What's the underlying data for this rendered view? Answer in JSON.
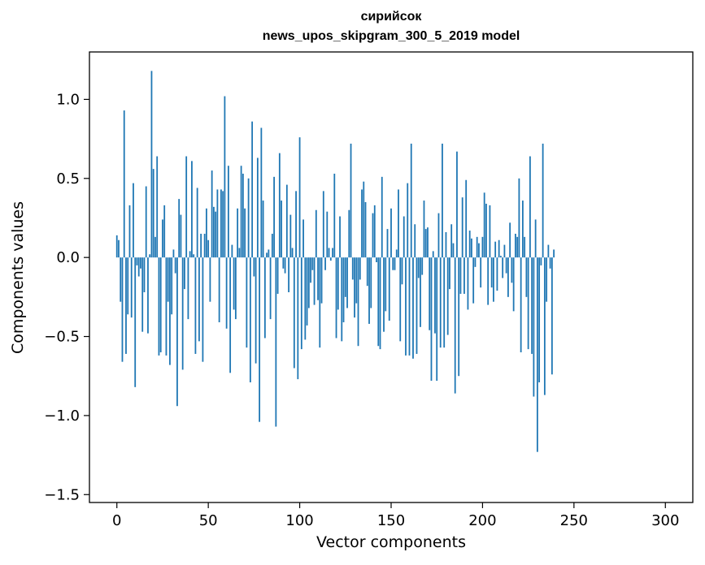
{
  "chart_data": {
    "type": "bar",
    "title": [
      "сирийсок",
      "news_upos_skipgram_300_5_2019 model"
    ],
    "xlabel": "Vector components",
    "ylabel": "Components values",
    "xlim": [
      -15,
      315
    ],
    "ylim": [
      -1.55,
      1.3
    ],
    "xticks": [
      0,
      50,
      100,
      150,
      200,
      250,
      300
    ],
    "yticks": [
      -1.5,
      -1.0,
      -0.5,
      0.0,
      0.5,
      1.0
    ],
    "ytick_labels": [
      "−1.5",
      "−1.0",
      "−0.5",
      "0.0",
      "0.5",
      "1.0"
    ],
    "grid": false,
    "color": "#1f77b4",
    "values": [
      0.14,
      0.11,
      -0.28,
      -0.66,
      0.93,
      -0.61,
      -0.36,
      0.33,
      -0.38,
      0.47,
      -0.82,
      -0.05,
      -0.12,
      -0.07,
      -0.47,
      -0.22,
      0.45,
      -0.48,
      0.02,
      1.18,
      0.56,
      0.13,
      0.64,
      -0.62,
      -0.6,
      0.24,
      0.33,
      -0.62,
      -0.28,
      -0.68,
      -0.36,
      0.05,
      -0.1,
      -0.94,
      0.37,
      0.27,
      -0.71,
      -0.2,
      0.64,
      -0.39,
      0.04,
      0.61,
      0.02,
      -0.61,
      0.44,
      -0.53,
      0.15,
      -0.66,
      0.15,
      0.31,
      0.11,
      -0.28,
      0.55,
      0.32,
      0.29,
      0.43,
      -0.41,
      0.43,
      0.42,
      1.02,
      -0.45,
      0.58,
      -0.73,
      0.08,
      -0.33,
      -0.39,
      0.31,
      0.06,
      0.58,
      0.53,
      0.31,
      -0.57,
      0.5,
      -0.79,
      0.86,
      -0.12,
      -0.67,
      0.63,
      -1.04,
      0.82,
      0.36,
      -0.51,
      0.03,
      0.05,
      -0.39,
      0.15,
      0.51,
      -1.07,
      -0.23,
      0.66,
      0.36,
      -0.07,
      -0.1,
      0.46,
      -0.22,
      0.27,
      0.06,
      -0.7,
      0.42,
      -0.77,
      0.76,
      -0.58,
      0.24,
      -0.52,
      -0.43,
      -0.32,
      -0.16,
      -0.08,
      -0.3,
      0.3,
      -0.27,
      -0.57,
      -0.29,
      0.42,
      -0.08,
      0.29,
      0.06,
      -0.02,
      0.06,
      0.53,
      -0.51,
      -0.33,
      0.26,
      -0.53,
      -0.41,
      -0.25,
      -0.32,
      0.3,
      0.72,
      -0.14,
      -0.38,
      -0.29,
      -0.56,
      -0.14,
      0.43,
      0.48,
      0.35,
      -0.18,
      -0.42,
      -0.32,
      0.28,
      0.33,
      -0.03,
      -0.56,
      -0.58,
      0.51,
      -0.47,
      -0.34,
      0.18,
      -0.4,
      0.31,
      -0.08,
      -0.08,
      0.05,
      0.43,
      -0.53,
      -0.17,
      0.26,
      -0.62,
      0.47,
      -0.62,
      0.72,
      -0.64,
      0.21,
      -0.61,
      -0.13,
      -0.44,
      -0.11,
      0.36,
      0.18,
      0.19,
      -0.46,
      -0.78,
      0.04,
      -0.48,
      -0.78,
      0.28,
      -0.57,
      0.72,
      -0.57,
      0.16,
      -0.49,
      -0.2,
      0.21,
      0.09,
      -0.86,
      0.67,
      -0.75,
      -0.23,
      0.38,
      -0.23,
      0.49,
      -0.33,
      0.17,
      0.12,
      -0.29,
      -0.06,
      0.13,
      0.09,
      -0.19,
      0.13,
      0.41,
      0.34,
      -0.3,
      0.33,
      -0.19,
      -0.28,
      0.1,
      -0.21,
      0.11,
      0.01,
      -0.13,
      0.08,
      -0.1,
      -0.25,
      0.22,
      -0.16,
      -0.34,
      0.15,
      0.13,
      0.5,
      -0.6,
      0.36,
      0.13,
      -0.25,
      -0.58,
      0.64,
      -0.61,
      -0.88,
      0.24,
      -1.23,
      -0.79,
      -0.05,
      0.72,
      -0.87,
      -0.28,
      0.08,
      -0.07,
      -0.74,
      0.05
    ]
  }
}
